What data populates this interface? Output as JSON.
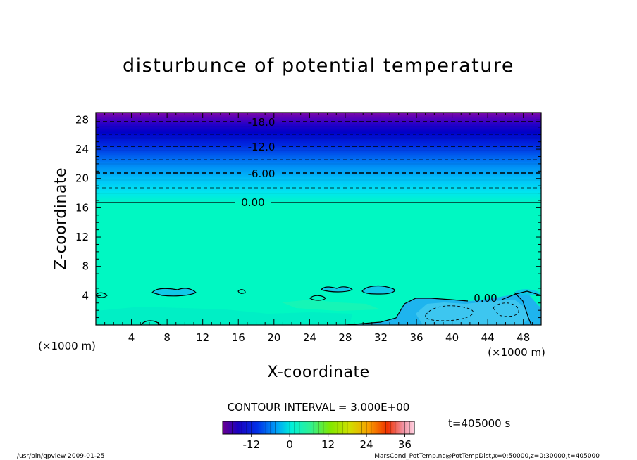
{
  "chart_data": {
    "type": "contour",
    "title": "disturbunce of potential temperature",
    "xlabel": "X-coordinate",
    "ylabel": "Z-coordinate",
    "x_unit": "(×1000 m)",
    "y_unit": "(×1000 m)",
    "xlim": [
      0,
      50
    ],
    "ylim": [
      0,
      29
    ],
    "x_ticks": [
      4,
      8,
      12,
      16,
      20,
      24,
      28,
      32,
      36,
      40,
      44,
      48
    ],
    "y_ticks": [
      4,
      8,
      12,
      16,
      20,
      24,
      28
    ],
    "contour_labels": [
      {
        "value": "-18.0",
        "x": 18.6,
        "z": 27.3
      },
      {
        "value": "-12.0",
        "x": 18.6,
        "z": 23.9
      },
      {
        "value": "-6.00",
        "x": 18.6,
        "z": 20.4
      },
      {
        "value": "0.00",
        "x": 17.5,
        "z": 16.6
      },
      {
        "value": "0.00",
        "x": 43.5,
        "z": 3.7
      }
    ],
    "contour_levels": {
      "dashed_major_z": [
        27.3,
        23.9,
        20.4
      ],
      "dashed_minor_z": [
        25.6,
        22.2,
        18.5
      ],
      "zero_line_z": 16.6
    },
    "contour_interval": "CONTOUR INTERVAL = 3.000E+00",
    "time_label": "t=405000 s",
    "colorbar": {
      "range": [
        -21,
        39
      ],
      "ticks": [
        "-12",
        "0",
        "12",
        "24",
        "36"
      ],
      "tick_values": [
        -12,
        0,
        12,
        24,
        36
      ]
    },
    "footer_left": "/usr/bin/gpview  2009-01-25",
    "footer_right": "MarsCond_PotTemp.nc@PotTempDist,x=0:50000,z=0:30000,t=405000"
  }
}
